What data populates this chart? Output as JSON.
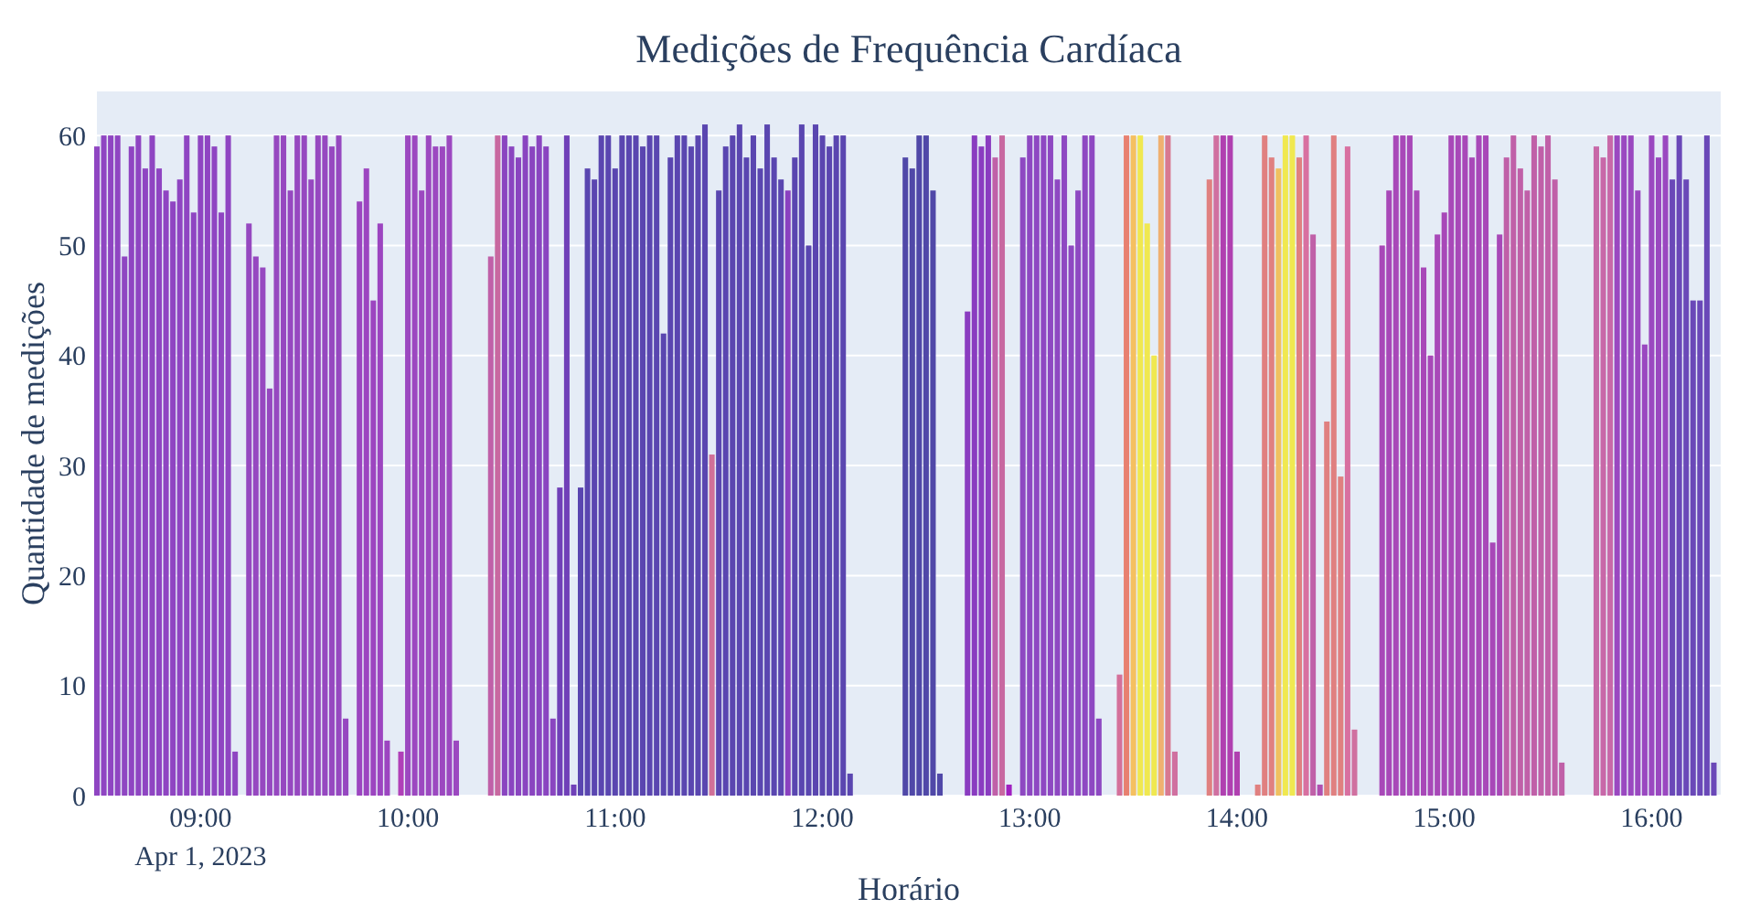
{
  "chart_data": {
    "type": "bar",
    "title": "Medições de Frequência Cardíaca",
    "xlabel": "Horário",
    "ylabel": "Quantidade de medições",
    "x": [
      "2023-04-01T08:30",
      "2023-04-01T08:32",
      "2023-04-01T08:34",
      "2023-04-01T08:36",
      "2023-04-01T08:38",
      "2023-04-01T08:40",
      "2023-04-01T08:42",
      "2023-04-01T08:44",
      "2023-04-01T08:46",
      "2023-04-01T08:48",
      "2023-04-01T08:50",
      "2023-04-01T08:52",
      "2023-04-01T08:54",
      "2023-04-01T08:56",
      "2023-04-01T08:58",
      "2023-04-01T09:00",
      "2023-04-01T09:02",
      "2023-04-01T09:04",
      "2023-04-01T09:06",
      "2023-04-01T09:08",
      "2023-04-01T09:10",
      "2023-04-01T09:14",
      "2023-04-01T09:16",
      "2023-04-01T09:18",
      "2023-04-01T09:20",
      "2023-04-01T09:22",
      "2023-04-01T09:24",
      "2023-04-01T09:26",
      "2023-04-01T09:28",
      "2023-04-01T09:30",
      "2023-04-01T09:32",
      "2023-04-01T09:34",
      "2023-04-01T09:36",
      "2023-04-01T09:38",
      "2023-04-01T09:40",
      "2023-04-01T09:42",
      "2023-04-01T09:46",
      "2023-04-01T09:48",
      "2023-04-01T09:50",
      "2023-04-01T09:52",
      "2023-04-01T09:54",
      "2023-04-01T09:58",
      "2023-04-01T10:00",
      "2023-04-01T10:02",
      "2023-04-01T10:04",
      "2023-04-01T10:06",
      "2023-04-01T10:08",
      "2023-04-01T10:10",
      "2023-04-01T10:12",
      "2023-04-01T10:14",
      "2023-04-01T10:24",
      "2023-04-01T10:26",
      "2023-04-01T10:28",
      "2023-04-01T10:30",
      "2023-04-01T10:32",
      "2023-04-01T10:34",
      "2023-04-01T10:36",
      "2023-04-01T10:38",
      "2023-04-01T10:40",
      "2023-04-01T10:42",
      "2023-04-01T10:44",
      "2023-04-01T10:46",
      "2023-04-01T10:48",
      "2023-04-01T10:50",
      "2023-04-01T10:52",
      "2023-04-01T10:54",
      "2023-04-01T10:56",
      "2023-04-01T10:58",
      "2023-04-01T11:00",
      "2023-04-01T11:02",
      "2023-04-01T11:04",
      "2023-04-01T11:06",
      "2023-04-01T11:08",
      "2023-04-01T11:10",
      "2023-04-01T11:12",
      "2023-04-01T11:14",
      "2023-04-01T11:16",
      "2023-04-01T11:18",
      "2023-04-01T11:20",
      "2023-04-01T11:22",
      "2023-04-01T11:24",
      "2023-04-01T11:26",
      "2023-04-01T11:28",
      "2023-04-01T11:30",
      "2023-04-01T11:32",
      "2023-04-01T11:34",
      "2023-04-01T11:36",
      "2023-04-01T11:38",
      "2023-04-01T11:40",
      "2023-04-01T11:42",
      "2023-04-01T11:44",
      "2023-04-01T11:46",
      "2023-04-01T11:48",
      "2023-04-01T11:50",
      "2023-04-01T11:52",
      "2023-04-01T11:54",
      "2023-04-01T11:56",
      "2023-04-01T11:58",
      "2023-04-01T12:00",
      "2023-04-01T12:02",
      "2023-04-01T12:04",
      "2023-04-01T12:06",
      "2023-04-01T12:08",
      "2023-04-01T12:24",
      "2023-04-01T12:26",
      "2023-04-01T12:28",
      "2023-04-01T12:30",
      "2023-04-01T12:32",
      "2023-04-01T12:34",
      "2023-04-01T12:42",
      "2023-04-01T12:44",
      "2023-04-01T12:46",
      "2023-04-01T12:48",
      "2023-04-01T12:50",
      "2023-04-01T12:52",
      "2023-04-01T12:54",
      "2023-04-01T12:58",
      "2023-04-01T13:00",
      "2023-04-01T13:02",
      "2023-04-01T13:04",
      "2023-04-01T13:06",
      "2023-04-01T13:08",
      "2023-04-01T13:10",
      "2023-04-01T13:12",
      "2023-04-01T13:14",
      "2023-04-01T13:16",
      "2023-04-01T13:18",
      "2023-04-01T13:20",
      "2023-04-01T13:26",
      "2023-04-01T13:28",
      "2023-04-01T13:30",
      "2023-04-01T13:32",
      "2023-04-01T13:34",
      "2023-04-01T13:36",
      "2023-04-01T13:38",
      "2023-04-01T13:40",
      "2023-04-01T13:42",
      "2023-04-01T13:52",
      "2023-04-01T13:54",
      "2023-04-01T13:56",
      "2023-04-01T13:58",
      "2023-04-01T14:00",
      "2023-04-01T14:06",
      "2023-04-01T14:08",
      "2023-04-01T14:10",
      "2023-04-01T14:12",
      "2023-04-01T14:14",
      "2023-04-01T14:16",
      "2023-04-01T14:18",
      "2023-04-01T14:20",
      "2023-04-01T14:22",
      "2023-04-01T14:24",
      "2023-04-01T14:26",
      "2023-04-01T14:28",
      "2023-04-01T14:30",
      "2023-04-01T14:32",
      "2023-04-01T14:34",
      "2023-04-01T14:42",
      "2023-04-01T14:44",
      "2023-04-01T14:46",
      "2023-04-01T14:48",
      "2023-04-01T14:50",
      "2023-04-01T14:52",
      "2023-04-01T14:54",
      "2023-04-01T14:56",
      "2023-04-01T14:58",
      "2023-04-01T15:00",
      "2023-04-01T15:02",
      "2023-04-01T15:04",
      "2023-04-01T15:06",
      "2023-04-01T15:08",
      "2023-04-01T15:10",
      "2023-04-01T15:12",
      "2023-04-01T15:14",
      "2023-04-01T15:16",
      "2023-04-01T15:18",
      "2023-04-01T15:20",
      "2023-04-01T15:22",
      "2023-04-01T15:24",
      "2023-04-01T15:26",
      "2023-04-01T15:28",
      "2023-04-01T15:30",
      "2023-04-01T15:32",
      "2023-04-01T15:34",
      "2023-04-01T15:44",
      "2023-04-01T15:46",
      "2023-04-01T15:48",
      "2023-04-01T15:50",
      "2023-04-01T15:52",
      "2023-04-01T15:54",
      "2023-04-01T15:56",
      "2023-04-01T15:58",
      "2023-04-01T16:00",
      "2023-04-01T16:02",
      "2023-04-01T16:04",
      "2023-04-01T16:06",
      "2023-04-01T16:08",
      "2023-04-01T16:10",
      "2023-04-01T16:12",
      "2023-04-01T16:14",
      "2023-04-01T16:16",
      "2023-04-01T16:18"
    ],
    "values": [
      59,
      60,
      60,
      60,
      49,
      59,
      60,
      57,
      60,
      57,
      55,
      54,
      56,
      60,
      53,
      60,
      60,
      59,
      53,
      60,
      4,
      52,
      49,
      48,
      37,
      60,
      60,
      55,
      60,
      60,
      56,
      60,
      60,
      59,
      60,
      7,
      54,
      57,
      45,
      52,
      5,
      4,
      60,
      60,
      55,
      60,
      59,
      59,
      60,
      5,
      49,
      60,
      60,
      59,
      58,
      60,
      59,
      60,
      59,
      7,
      28,
      60,
      1,
      28,
      57,
      56,
      60,
      60,
      57,
      60,
      60,
      60,
      59,
      60,
      60,
      42,
      58,
      60,
      60,
      59,
      60,
      61,
      31,
      55,
      59,
      60,
      61,
      58,
      60,
      57,
      61,
      58,
      56,
      55,
      58,
      61,
      50,
      61,
      60,
      59,
      60,
      60,
      2,
      58,
      57,
      60,
      60,
      55,
      2,
      44,
      60,
      59,
      60,
      58,
      60,
      1,
      58,
      60,
      60,
      60,
      60,
      56,
      60,
      50,
      55,
      60,
      60,
      7,
      11,
      60,
      60,
      60,
      52,
      40,
      60,
      60,
      4,
      56,
      60,
      60,
      60,
      4,
      1,
      60,
      58,
      57,
      60,
      60,
      58,
      60,
      51,
      1,
      34,
      60,
      29,
      59,
      6,
      50,
      55,
      60,
      60,
      60,
      55,
      48,
      40,
      51,
      53,
      60,
      60,
      60,
      58,
      60,
      60,
      23,
      51,
      58,
      60,
      57,
      55,
      60,
      59,
      60,
      56,
      3,
      59,
      58,
      60,
      60,
      60,
      60,
      55,
      41,
      60,
      58,
      60,
      56,
      60,
      56,
      45,
      45,
      60,
      3
    ],
    "colors": [
      "#8f45c2",
      "#8f45c2",
      "#8f45c2",
      "#8f45c2",
      "#8f45c2",
      "#8f45c2",
      "#8f45c2",
      "#8f45c2",
      "#8f45c2",
      "#8f45c2",
      "#8f45c2",
      "#8f45c2",
      "#8f45c2",
      "#8f45c2",
      "#8f45c2",
      "#8f45c2",
      "#8f45c2",
      "#8f45c2",
      "#8f45c2",
      "#8f45c2",
      "#8f45c2",
      "#9648c0",
      "#9648c0",
      "#9648c0",
      "#9648c0",
      "#9648c0",
      "#9648c0",
      "#9648c0",
      "#9648c0",
      "#9648c0",
      "#9648c0",
      "#9648c0",
      "#9648c0",
      "#9648c0",
      "#9648c0",
      "#9648c0",
      "#9c45c0",
      "#9c45c0",
      "#9c45c0",
      "#9c45c0",
      "#9c45c0",
      "#b040b8",
      "#9c48c0",
      "#9c48c0",
      "#9c48c0",
      "#9c48c0",
      "#9c48c0",
      "#9c48c0",
      "#9c48c0",
      "#9c48c0",
      "#c060a8",
      "#c868a0",
      "#8a45c0",
      "#8a45c0",
      "#8a45c0",
      "#8a45c0",
      "#8a45c0",
      "#8a45c0",
      "#8a45c0",
      "#8a45c0",
      "#7040b8",
      "#7040b8",
      "#7040b8",
      "#5a46b0",
      "#5a46b0",
      "#5a46b0",
      "#5a46b0",
      "#5a46b0",
      "#5a46b0",
      "#5a46b0",
      "#5a46b0",
      "#5a46b0",
      "#5a46b0",
      "#5a46b0",
      "#5a46b0",
      "#5a46b0",
      "#5a46b0",
      "#5a46b0",
      "#5a46b0",
      "#5a46b0",
      "#5a46b0",
      "#5a46b0",
      "#d07098",
      "#5a46b0",
      "#5a46b0",
      "#5a46b0",
      "#5a46b0",
      "#5a46b0",
      "#5a46b0",
      "#5a46b0",
      "#5a46b0",
      "#5a46b0",
      "#5a46b0",
      "#8a40c0",
      "#5a46b0",
      "#5a46b0",
      "#5a46b0",
      "#5a46b0",
      "#5a46b0",
      "#5a46b0",
      "#5a46b0",
      "#5a46b0",
      "#5a46b0",
      "#5048a8",
      "#5048a8",
      "#5048a8",
      "#5048a8",
      "#5048a8",
      "#5048a8",
      "#8a3cc0",
      "#8a3cc0",
      "#8a3cc0",
      "#8a3cc0",
      "#c060a8",
      "#c868a0",
      "#a020c0",
      "#8e48c2",
      "#8e48c2",
      "#8e48c2",
      "#8e48c2",
      "#8e48c2",
      "#8e48c2",
      "#8e48c2",
      "#8e48c2",
      "#8e48c2",
      "#8e48c2",
      "#8e48c2",
      "#8e48c2",
      "#d4709a",
      "#e88070",
      "#f5c060",
      "#f0e850",
      "#f0e850",
      "#f0e850",
      "#f0b070",
      "#d87890",
      "#d070a0",
      "#e08080",
      "#d070a0",
      "#b040b0",
      "#b040b0",
      "#b040b0",
      "#e08080",
      "#e08080",
      "#e08080",
      "#f0c060",
      "#f0e850",
      "#f0e850",
      "#e08080",
      "#d870a0",
      "#c060a8",
      "#b050b0",
      "#e08080",
      "#e08080",
      "#e08080",
      "#d870a0",
      "#d070a0",
      "#a848b8",
      "#a848b8",
      "#a848b8",
      "#a848b8",
      "#a848b8",
      "#a848b8",
      "#a848b8",
      "#a848b8",
      "#a848b8",
      "#a848b8",
      "#a848b8",
      "#a848b8",
      "#a848b8",
      "#a848b8",
      "#a848b8",
      "#a848b8",
      "#a848b8",
      "#a848b8",
      "#c060a8",
      "#c060a8",
      "#c060a8",
      "#c060a8",
      "#c060a8",
      "#c060a8",
      "#c060a8",
      "#c060a8",
      "#c060a8",
      "#c868a8",
      "#c868a8",
      "#c868a8",
      "#9a48c0",
      "#9a48c0",
      "#9a48c0",
      "#9a48c0",
      "#9a48c0",
      "#9a48c0",
      "#9a48c0",
      "#9a48c0",
      "#6a48b8",
      "#6a48b8",
      "#6a48b8",
      "#6a48b8",
      "#6a48b8",
      "#6a48b8",
      "#6a48b8"
    ],
    "xlim": [
      "2023-04-01T08:30",
      "2023-04-01T16:20"
    ],
    "xticks": [
      {
        "value": "2023-04-01T09:00",
        "label": "09:00\nApr 1, 2023"
      },
      {
        "value": "2023-04-01T10:00",
        "label": "10:00"
      },
      {
        "value": "2023-04-01T11:00",
        "label": "11:00"
      },
      {
        "value": "2023-04-01T12:00",
        "label": "12:00"
      },
      {
        "value": "2023-04-01T13:00",
        "label": "13:00"
      },
      {
        "value": "2023-04-01T14:00",
        "label": "14:00"
      },
      {
        "value": "2023-04-01T15:00",
        "label": "15:00"
      },
      {
        "value": "2023-04-01T16:00",
        "label": "16:00"
      }
    ],
    "ylim": [
      0,
      64
    ],
    "yticks": [
      0,
      10,
      20,
      30,
      40,
      50,
      60
    ],
    "grid": "y"
  }
}
